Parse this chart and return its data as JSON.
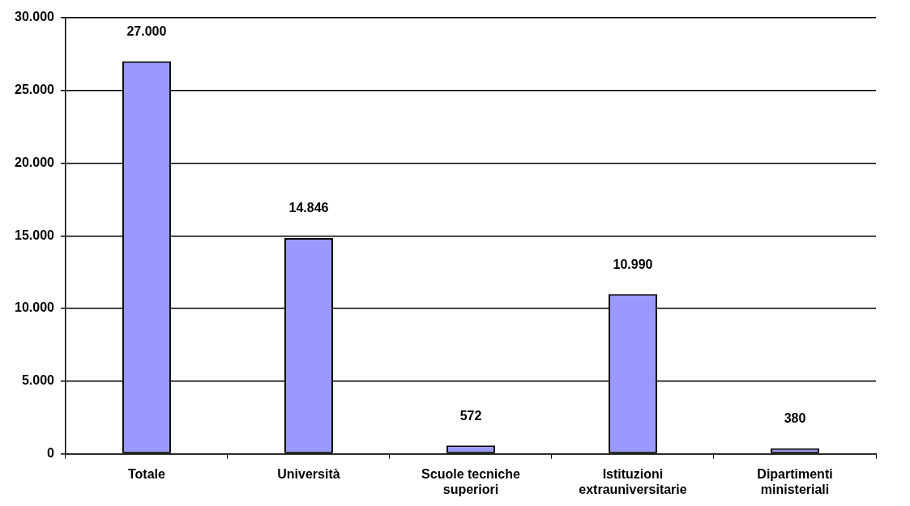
{
  "chart_data": {
    "type": "bar",
    "categories": [
      "Totale",
      "Università",
      "Scuole tecniche superiori",
      "Istituzioni extrauniversitarie",
      "Dipartimenti ministeriali"
    ],
    "values": [
      27000,
      14846,
      572,
      10990,
      380
    ],
    "value_labels": [
      "27.000",
      "14.846",
      "572",
      "10.990",
      "380"
    ],
    "color": "#9999ff",
    "ylim": [
      0,
      30000
    ],
    "yticks": [
      {
        "value": 0,
        "label": "0"
      },
      {
        "value": 5000,
        "label": "5.000"
      },
      {
        "value": 10000,
        "label": "10.000"
      },
      {
        "value": 15000,
        "label": "15.000"
      },
      {
        "value": 20000,
        "label": "20.000"
      },
      {
        "value": 25000,
        "label": "25.000"
      },
      {
        "value": 30000,
        "label": "30.000"
      }
    ],
    "grid": "y",
    "legend": false
  }
}
